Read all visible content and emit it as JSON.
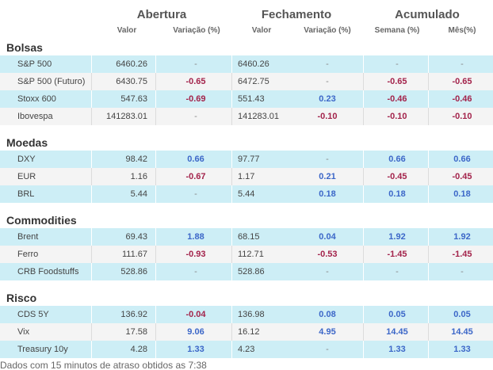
{
  "headers": {
    "groups": [
      "Abertura",
      "Fechamento",
      "Acumulado"
    ],
    "sub": [
      "Valor",
      "Variação (%)",
      "Valor",
      "Variação (%)",
      "Semana (%)",
      "Mês(%)"
    ]
  },
  "colors": {
    "positive": "#3c67c8",
    "negative": "#a3234b",
    "row_highlight": "#cdeef6",
    "row_plain": "#f4f4f4"
  },
  "sections": [
    {
      "title": "Bolsas",
      "rows": [
        {
          "name": "S&P 500",
          "open": "6460.26",
          "open_var": "-",
          "close": "6460.26",
          "close_var": "-",
          "week": "-",
          "month": "-"
        },
        {
          "name": "S&P 500 (Futuro)",
          "open": "6430.75",
          "open_var": "-0.65",
          "close": "6472.75",
          "close_var": "-",
          "week": "-0.65",
          "month": "-0.65"
        },
        {
          "name": "Stoxx 600",
          "open": "547.63",
          "open_var": "-0.69",
          "close": "551.43",
          "close_var": "0.23",
          "week": "-0.46",
          "month": "-0.46"
        },
        {
          "name": "Ibovespa",
          "open": "141283.01",
          "open_var": "-",
          "close": "141283.01",
          "close_var": "-0.10",
          "week": "-0.10",
          "month": "-0.10"
        }
      ]
    },
    {
      "title": "Moedas",
      "rows": [
        {
          "name": "DXY",
          "open": "98.42",
          "open_var": "0.66",
          "close": "97.77",
          "close_var": "-",
          "week": "0.66",
          "month": "0.66"
        },
        {
          "name": "EUR",
          "open": "1.16",
          "open_var": "-0.67",
          "close": "1.17",
          "close_var": "0.21",
          "week": "-0.45",
          "month": "-0.45"
        },
        {
          "name": "BRL",
          "open": "5.44",
          "open_var": "-",
          "close": "5.44",
          "close_var": "0.18",
          "week": "0.18",
          "month": "0.18"
        }
      ]
    },
    {
      "title": "Commodities",
      "rows": [
        {
          "name": "Brent",
          "open": "69.43",
          "open_var": "1.88",
          "close": "68.15",
          "close_var": "0.04",
          "week": "1.92",
          "month": "1.92"
        },
        {
          "name": "Ferro",
          "open": "111.67",
          "open_var": "-0.93",
          "close": "112.71",
          "close_var": "-0.53",
          "week": "-1.45",
          "month": "-1.45"
        },
        {
          "name": "CRB Foodstuffs",
          "open": "528.86",
          "open_var": "-",
          "close": "528.86",
          "close_var": "-",
          "week": "-",
          "month": "-"
        }
      ]
    },
    {
      "title": "Risco",
      "rows": [
        {
          "name": "CDS 5Y",
          "open": "136.92",
          "open_var": "-0.04",
          "close": "136.98",
          "close_var": "0.08",
          "week": "0.05",
          "month": "0.05"
        },
        {
          "name": "Vix",
          "open": "17.58",
          "open_var": "9.06",
          "close": "16.12",
          "close_var": "4.95",
          "week": "14.45",
          "month": "14.45"
        },
        {
          "name": "Treasury 10y",
          "open": "4.28",
          "open_var": "1.33",
          "close": "4.23",
          "close_var": "-",
          "week": "1.33",
          "month": "1.33"
        }
      ]
    }
  ],
  "footer": "Dados com 15 minutos de atraso obtidos as 7:38"
}
